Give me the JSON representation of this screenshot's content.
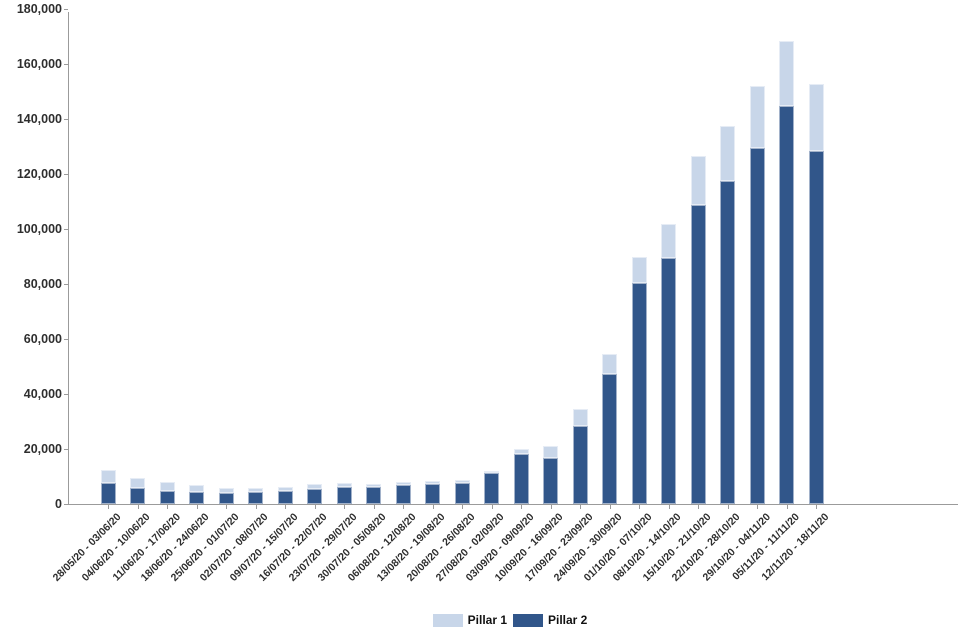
{
  "chart_data": {
    "type": "bar",
    "stacked": true,
    "title": "",
    "xlabel": "",
    "ylabel": "",
    "categories": [
      "28/05/20 - 03/06/20",
      "04/06/20 - 10/06/20",
      "11/06/20 - 17/06/20",
      "18/06/20 - 24/06/20",
      "25/06/20 - 01/07/20",
      "02/07/20 - 08/07/20",
      "09/07/20 - 15/07/20",
      "16/07/20 - 22/07/20",
      "23/07/20 - 29/07/20",
      "30/07/20 - 05/08/20",
      "06/08/20 - 12/08/20",
      "13/08/20 - 19/08/20",
      "20/08/20 - 26/08/20",
      "27/08/20 - 02/09/20",
      "03/09/20 - 09/09/20",
      "10/09/20 - 16/09/20",
      "17/09/20 - 23/09/20",
      "24/09/20 - 30/09/20",
      "01/10/20 - 07/10/20",
      "08/10/20 - 14/10/20",
      "15/10/20 - 21/10/20",
      "22/10/20 - 28/10/20",
      "29/10/20 - 04/11/20",
      "05/11/20 - 11/11/20",
      "12/11/20 - 18/11/20"
    ],
    "series": [
      {
        "name": "Pillar 1",
        "color": "#c8d6e9",
        "values": [
          4700,
          3600,
          3200,
          2700,
          1900,
          1500,
          1600,
          1800,
          1500,
          1100,
          1100,
          1200,
          1100,
          900,
          2000,
          4500,
          6100,
          7200,
          9600,
          12300,
          17600,
          20100,
          22400,
          23600,
          24300
        ]
      },
      {
        "name": "Pillar 2",
        "color": "#31568a",
        "values": [
          7700,
          5800,
          4900,
          4300,
          3900,
          4400,
          4700,
          5400,
          6100,
          6000,
          7000,
          7200,
          7500,
          11100,
          18100,
          16600,
          28400,
          47300,
          80200,
          89500,
          108900,
          117500,
          129500,
          144800,
          128400
        ]
      }
    ],
    "stack_order_bottom_to_top": [
      "Pillar 2",
      "Pillar 1"
    ],
    "ylim": [
      0,
      180000
    ],
    "y_tick_step": 20000,
    "y_tick_labels": [
      "0",
      "20,000",
      "40,000",
      "60,000",
      "80,000",
      "100,000",
      "120,000",
      "140,000",
      "160,000",
      "180,000"
    ],
    "grid": false,
    "legend_position": "bottom-center",
    "axis_color": "#9b9b9b",
    "text_color": "#2e2e2e"
  },
  "legend": {
    "items": [
      {
        "label": "Pillar 1"
      },
      {
        "label": "Pillar 2"
      }
    ]
  }
}
